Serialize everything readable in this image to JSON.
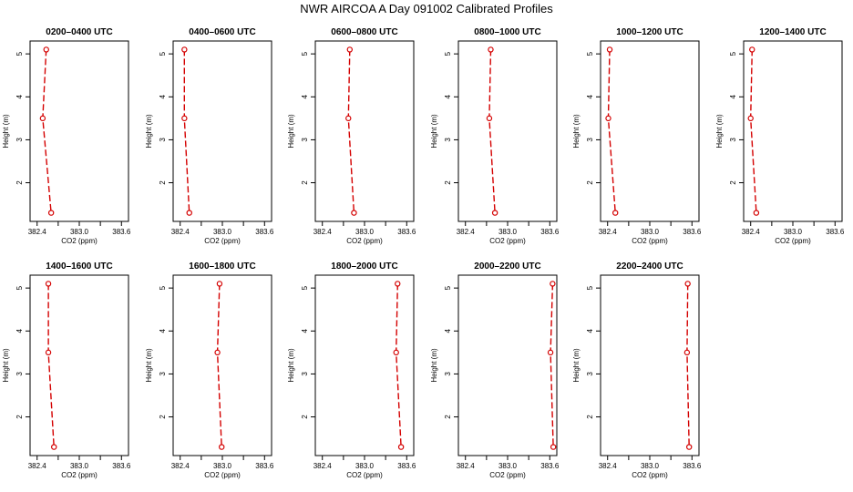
{
  "title": "NWR AIRCOA A  Day 091002  Calibrated Profiles",
  "colors": {
    "line": "#d40000",
    "marker": "#d40000",
    "axis": "#000000"
  },
  "chart_data": [
    {
      "type": "line",
      "title": "0200–0400 UTC",
      "xlabel": "CO2 (ppm)",
      "ylabel": "Height (m)",
      "xlim": [
        382.3,
        383.7
      ],
      "ylim": [
        1.1,
        5.3
      ],
      "xticks": [
        "382.4",
        "383.0",
        "383.6"
      ],
      "yticks": [
        "2",
        "3",
        "4",
        "5"
      ],
      "series": [
        {
          "x": [
            382.53,
            382.48,
            382.6
          ],
          "y": [
            5.1,
            3.5,
            1.3
          ]
        }
      ]
    },
    {
      "type": "line",
      "title": "0400–0600 UTC",
      "xlabel": "CO2 (ppm)",
      "ylabel": "Height (m)",
      "xlim": [
        382.3,
        383.7
      ],
      "ylim": [
        1.1,
        5.3
      ],
      "xticks": [
        "382.4",
        "383.0",
        "383.6"
      ],
      "yticks": [
        "2",
        "3",
        "4",
        "5"
      ],
      "series": [
        {
          "x": [
            382.46,
            382.46,
            382.53
          ],
          "y": [
            5.1,
            3.5,
            1.3
          ]
        }
      ]
    },
    {
      "type": "line",
      "title": "0600–0800 UTC",
      "xlabel": "CO2 (ppm)",
      "ylabel": "Height (m)",
      "xlim": [
        382.3,
        383.7
      ],
      "ylim": [
        1.1,
        5.3
      ],
      "xticks": [
        "382.4",
        "383.0",
        "383.6"
      ],
      "yticks": [
        "2",
        "3",
        "4",
        "5"
      ],
      "series": [
        {
          "x": [
            382.79,
            382.77,
            382.85
          ],
          "y": [
            5.1,
            3.5,
            1.3
          ]
        }
      ]
    },
    {
      "type": "line",
      "title": "0800–1000 UTC",
      "xlabel": "CO2 (ppm)",
      "ylabel": "Height (m)",
      "xlim": [
        382.3,
        383.7
      ],
      "ylim": [
        1.1,
        5.3
      ],
      "xticks": [
        "382.4",
        "383.0",
        "383.6"
      ],
      "yticks": [
        "2",
        "3",
        "4",
        "5"
      ],
      "series": [
        {
          "x": [
            382.76,
            382.74,
            382.82
          ],
          "y": [
            5.1,
            3.5,
            1.3
          ]
        }
      ]
    },
    {
      "type": "line",
      "title": "1000–1200 UTC",
      "xlabel": "CO2 (ppm)",
      "ylabel": "Height (m)",
      "xlim": [
        382.3,
        383.7
      ],
      "ylim": [
        1.1,
        5.3
      ],
      "xticks": [
        "382.4",
        "383.0",
        "383.6"
      ],
      "yticks": [
        "2",
        "3",
        "4",
        "5"
      ],
      "series": [
        {
          "x": [
            382.43,
            382.41,
            382.51
          ],
          "y": [
            5.1,
            3.5,
            1.3
          ]
        }
      ]
    },
    {
      "type": "line",
      "title": "1200–1400 UTC",
      "xlabel": "CO2 (ppm)",
      "ylabel": "Height (m)",
      "xlim": [
        382.3,
        383.7
      ],
      "ylim": [
        1.1,
        5.3
      ],
      "xticks": [
        "382.4",
        "383.0",
        "383.6"
      ],
      "yticks": [
        "2",
        "3",
        "4",
        "5"
      ],
      "series": [
        {
          "x": [
            382.42,
            382.4,
            382.48
          ],
          "y": [
            5.1,
            3.5,
            1.3
          ]
        }
      ]
    },
    {
      "type": "line",
      "title": "1400–1600 UTC",
      "xlabel": "CO2 (ppm)",
      "ylabel": "Height (m)",
      "xlim": [
        382.3,
        383.7
      ],
      "ylim": [
        1.1,
        5.3
      ],
      "xticks": [
        "382.4",
        "383.0",
        "383.6"
      ],
      "yticks": [
        "2",
        "3",
        "4",
        "5"
      ],
      "series": [
        {
          "x": [
            382.56,
            382.56,
            382.64
          ],
          "y": [
            5.1,
            3.5,
            1.3
          ]
        }
      ]
    },
    {
      "type": "line",
      "title": "1600–1800 UTC",
      "xlabel": "CO2 (ppm)",
      "ylabel": "Height (m)",
      "xlim": [
        382.3,
        383.7
      ],
      "ylim": [
        1.1,
        5.3
      ],
      "xticks": [
        "382.4",
        "383.0",
        "383.6"
      ],
      "yticks": [
        "2",
        "3",
        "4",
        "5"
      ],
      "series": [
        {
          "x": [
            382.96,
            382.93,
            382.99
          ],
          "y": [
            5.1,
            3.5,
            1.3
          ]
        }
      ]
    },
    {
      "type": "line",
      "title": "1800–2000 UTC",
      "xlabel": "CO2 (ppm)",
      "ylabel": "Height (m)",
      "xlim": [
        382.3,
        383.7
      ],
      "ylim": [
        1.1,
        5.3
      ],
      "xticks": [
        "382.4",
        "383.0",
        "383.6"
      ],
      "yticks": [
        "2",
        "3",
        "4",
        "5"
      ],
      "series": [
        {
          "x": [
            383.47,
            383.45,
            383.52
          ],
          "y": [
            5.1,
            3.5,
            1.3
          ]
        }
      ]
    },
    {
      "type": "line",
      "title": "2000–2200 UTC",
      "xlabel": "CO2 (ppm)",
      "ylabel": "Height (m)",
      "xlim": [
        382.3,
        383.7
      ],
      "ylim": [
        1.1,
        5.3
      ],
      "xticks": [
        "382.4",
        "383.0",
        "383.6"
      ],
      "yticks": [
        "2",
        "3",
        "4",
        "5"
      ],
      "series": [
        {
          "x": [
            383.64,
            383.61,
            383.65
          ],
          "y": [
            5.1,
            3.5,
            1.3
          ]
        }
      ]
    },
    {
      "type": "line",
      "title": "2200–2400 UTC",
      "xlabel": "CO2 (ppm)",
      "ylabel": "Height (m)",
      "xlim": [
        382.3,
        383.7
      ],
      "ylim": [
        1.1,
        5.3
      ],
      "xticks": [
        "382.4",
        "383.0",
        "383.6"
      ],
      "yticks": [
        "2",
        "3",
        "4",
        "5"
      ],
      "series": [
        {
          "x": [
            383.54,
            383.53,
            383.56
          ],
          "y": [
            5.1,
            3.5,
            1.3
          ]
        }
      ]
    }
  ]
}
